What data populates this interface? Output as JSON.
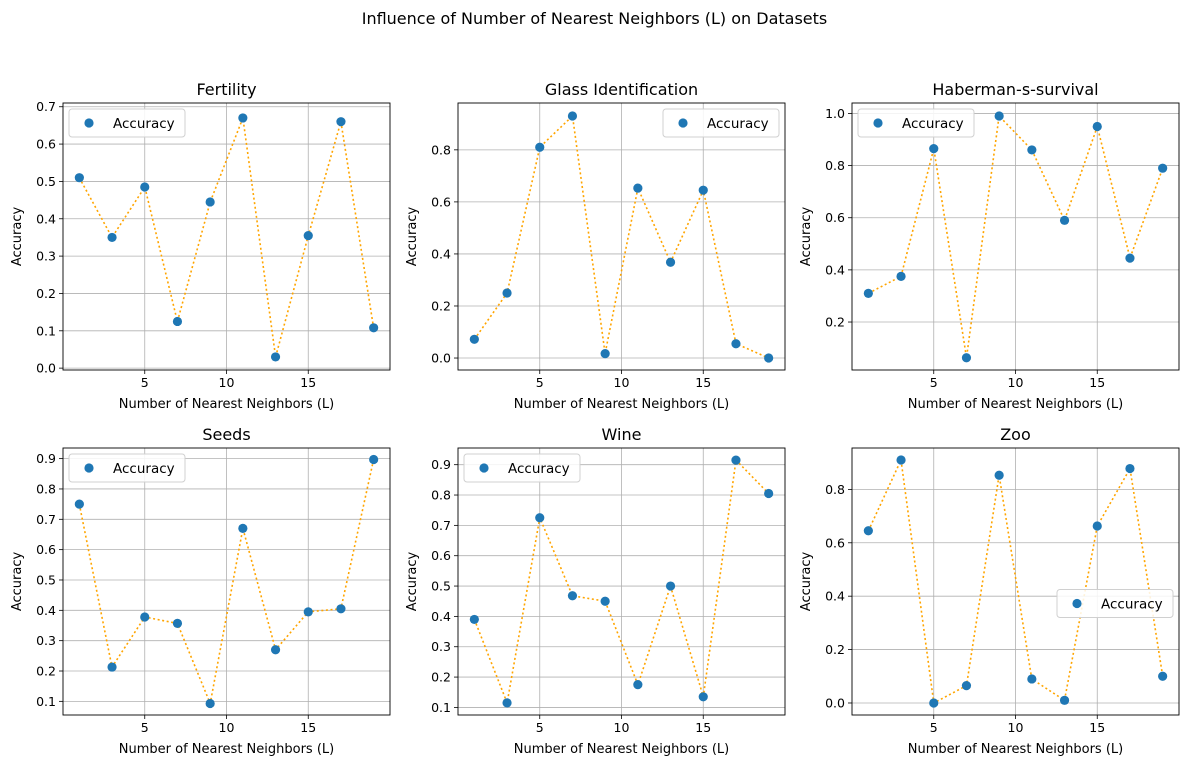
{
  "figure_title": "Influence of Number of Nearest Neighbors (L) on Datasets",
  "colors": {
    "marker": "#1f77b4",
    "line": "#ffa500",
    "grid": "#b0b0b0"
  },
  "chart_data": [
    {
      "type": "scatter",
      "title": "Fertility",
      "xlabel": "Number of Nearest Neighbors (L)",
      "ylabel": "Accuracy",
      "xlim": [
        0,
        20
      ],
      "ylim": [
        -0.005,
        0.71
      ],
      "xticks": [
        5,
        10,
        15
      ],
      "yticks": [
        0.0,
        0.1,
        0.2,
        0.3,
        0.4,
        0.5,
        0.6,
        0.7
      ],
      "grid": true,
      "legend": "upper-left",
      "series": [
        {
          "name": "Accuracy",
          "x": [
            1,
            3,
            5,
            7,
            9,
            11,
            13,
            15,
            17,
            19
          ],
          "y": [
            0.51,
            0.35,
            0.485,
            0.125,
            0.445,
            0.67,
            0.03,
            0.355,
            0.66,
            0.108
          ]
        }
      ]
    },
    {
      "type": "scatter",
      "title": "Glass Identification",
      "xlabel": "Number of Nearest Neighbors (L)",
      "ylabel": "Accuracy",
      "xlim": [
        0,
        20
      ],
      "ylim": [
        -0.046,
        0.98
      ],
      "xticks": [
        5,
        10,
        15
      ],
      "yticks": [
        0.0,
        0.2,
        0.4,
        0.6,
        0.8
      ],
      "grid": true,
      "legend": "upper-right",
      "series": [
        {
          "name": "Accuracy",
          "x": [
            1,
            3,
            5,
            7,
            9,
            11,
            13,
            15,
            17,
            19
          ],
          "y": [
            0.072,
            0.25,
            0.81,
            0.93,
            0.017,
            0.653,
            0.368,
            0.645,
            0.055,
            0.0
          ]
        }
      ]
    },
    {
      "type": "scatter",
      "title": "Haberman-s-survival",
      "xlabel": "Number of Nearest Neighbors (L)",
      "ylabel": "Accuracy",
      "xlim": [
        0,
        20
      ],
      "ylim": [
        0.016,
        1.04
      ],
      "xticks": [
        5,
        10,
        15
      ],
      "yticks": [
        0.2,
        0.4,
        0.6,
        0.8,
        1.0
      ],
      "grid": true,
      "legend": "upper-left",
      "series": [
        {
          "name": "Accuracy",
          "x": [
            1,
            3,
            5,
            7,
            9,
            11,
            13,
            15,
            17,
            19
          ],
          "y": [
            0.31,
            0.375,
            0.865,
            0.063,
            0.99,
            0.86,
            0.59,
            0.95,
            0.445,
            0.79
          ]
        }
      ]
    },
    {
      "type": "scatter",
      "title": "Seeds",
      "xlabel": "Number of Nearest Neighbors (L)",
      "ylabel": "Accuracy",
      "xlim": [
        0,
        20
      ],
      "ylim": [
        0.055,
        0.935
      ],
      "xticks": [
        5,
        10,
        15
      ],
      "yticks": [
        0.1,
        0.2,
        0.3,
        0.4,
        0.5,
        0.6,
        0.7,
        0.8,
        0.9
      ],
      "grid": true,
      "legend": "upper-left",
      "series": [
        {
          "name": "Accuracy",
          "x": [
            1,
            3,
            5,
            7,
            9,
            11,
            13,
            15,
            17,
            19
          ],
          "y": [
            0.75,
            0.213,
            0.378,
            0.357,
            0.093,
            0.67,
            0.27,
            0.395,
            0.405,
            0.897
          ]
        }
      ]
    },
    {
      "type": "scatter",
      "title": "Wine",
      "xlabel": "Number of Nearest Neighbors (L)",
      "ylabel": "Accuracy",
      "xlim": [
        0,
        20
      ],
      "ylim": [
        0.075,
        0.955
      ],
      "xticks": [
        5,
        10,
        15
      ],
      "yticks": [
        0.1,
        0.2,
        0.3,
        0.4,
        0.5,
        0.6,
        0.7,
        0.8,
        0.9
      ],
      "grid": true,
      "legend": "upper-left",
      "series": [
        {
          "name": "Accuracy",
          "x": [
            1,
            3,
            5,
            7,
            9,
            11,
            13,
            15,
            17,
            19
          ],
          "y": [
            0.39,
            0.115,
            0.725,
            0.468,
            0.45,
            0.175,
            0.5,
            0.135,
            0.915,
            0.805
          ]
        }
      ]
    },
    {
      "type": "scatter",
      "title": "Zoo",
      "xlabel": "Number of Nearest Neighbors (L)",
      "ylabel": "Accuracy",
      "xlim": [
        0,
        20
      ],
      "ylim": [
        -0.045,
        0.955
      ],
      "xticks": [
        5,
        10,
        15
      ],
      "yticks": [
        0.0,
        0.2,
        0.4,
        0.6,
        0.8
      ],
      "grid": true,
      "legend": "center-right",
      "series": [
        {
          "name": "Accuracy",
          "x": [
            1,
            3,
            5,
            7,
            9,
            11,
            13,
            15,
            17,
            19
          ],
          "y": [
            0.645,
            0.91,
            0.0,
            0.065,
            0.853,
            0.09,
            0.01,
            0.663,
            0.878,
            0.1
          ]
        }
      ]
    }
  ]
}
